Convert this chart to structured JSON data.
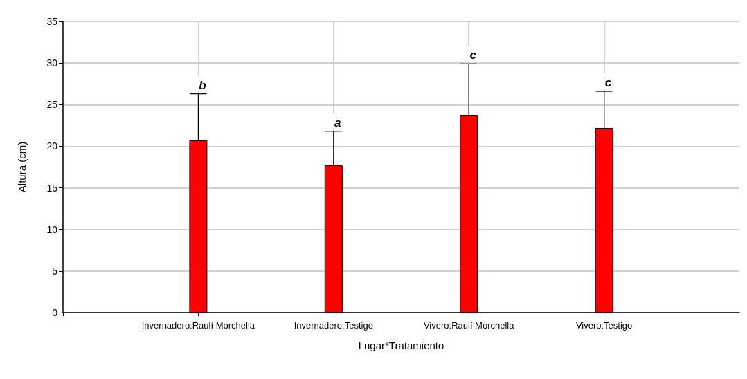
{
  "chart_data": {
    "type": "bar",
    "xlabel": "Lugar*Tratamiento",
    "ylabel": "Altura (cm)",
    "categories": [
      "Invernadero:Raulí Morchella",
      "Invernadero:Testigo",
      "Vivero:Raulí Morchella",
      "Vivero:Testigo"
    ],
    "values": [
      20.7,
      17.7,
      23.7,
      22.2
    ],
    "color": "#ff0000",
    "errors": [
      [
        20.7,
        26.3
      ],
      [
        17.7,
        21.8
      ],
      [
        23.7,
        29.9
      ],
      [
        22.2,
        26.6
      ]
    ],
    "annotations": [
      {
        "text": "b",
        "x": "Invernadero:Raulí Morchella",
        "y": 26.3
      },
      {
        "text": "a",
        "x": "Invernadero:Testigo",
        "y": 21.8
      },
      {
        "text": "c",
        "x": "Vivero:Raulí Morchella",
        "y": 29.9
      },
      {
        "text": "c",
        "x": "Vivero:Testigo",
        "y": 26.6
      }
    ],
    "ylim": [
      0,
      35
    ],
    "yticks": [
      0,
      5,
      10,
      15,
      20,
      25,
      30,
      35
    ],
    "grid": true
  }
}
